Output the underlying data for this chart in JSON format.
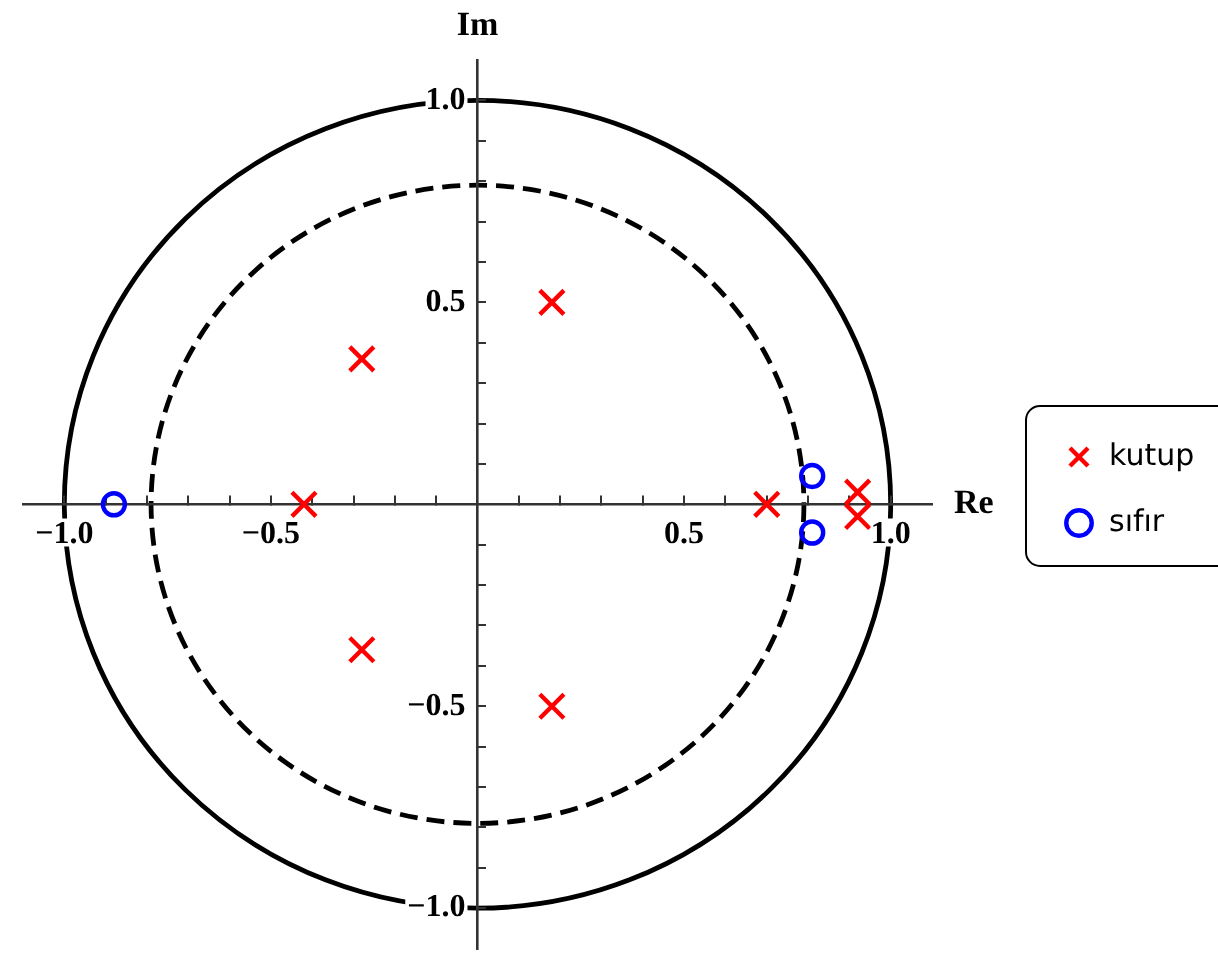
{
  "chart_data": {
    "type": "scatter",
    "xlabel": "Re",
    "ylabel": "Im",
    "xlim": [
      -1.1,
      1.1
    ],
    "ylim": [
      -1.1,
      1.1
    ],
    "xticks": [
      {
        "value": -1,
        "label": "−1.0"
      },
      {
        "value": -0.9,
        "label": null
      },
      {
        "value": -0.8,
        "label": null
      },
      {
        "value": -0.7,
        "label": null
      },
      {
        "value": -0.6,
        "label": null
      },
      {
        "value": -0.5,
        "label": "−0.5"
      },
      {
        "value": -0.4,
        "label": null
      },
      {
        "value": -0.3,
        "label": null
      },
      {
        "value": -0.2,
        "label": null
      },
      {
        "value": -0.1,
        "label": null
      },
      {
        "value": 0.1,
        "label": null
      },
      {
        "value": 0.2,
        "label": null
      },
      {
        "value": 0.3,
        "label": null
      },
      {
        "value": 0.4,
        "label": null
      },
      0.5,
      {
        "value": 0.6,
        "label": null
      },
      {
        "value": 0.7,
        "label": null
      },
      {
        "value": 0.8,
        "label": null
      },
      {
        "value": 0.9,
        "label": null
      },
      {
        "value": 1,
        "label": "1.0"
      }
    ],
    "yticks": [
      {
        "value": -1,
        "label": "−1.0"
      },
      {
        "value": -0.9,
        "label": null
      },
      {
        "value": -0.8,
        "label": null
      },
      {
        "value": -0.7,
        "label": null
      },
      {
        "value": -0.6,
        "label": null
      },
      {
        "value": -0.5,
        "label": "−0.5"
      },
      {
        "value": -0.4,
        "label": null
      },
      {
        "value": -0.3,
        "label": null
      },
      {
        "value": -0.2,
        "label": null
      },
      {
        "value": -0.1,
        "label": null
      },
      {
        "value": 0.1,
        "label": null
      },
      {
        "value": 0.2,
        "label": null
      },
      {
        "value": 0.3,
        "label": null
      },
      {
        "value": 0.4,
        "label": null
      },
      0.5,
      {
        "value": 0.6,
        "label": null
      },
      {
        "value": 0.7,
        "label": null
      },
      {
        "value": 0.8,
        "label": null
      },
      {
        "value": 0.9,
        "label": null
      },
      {
        "value": 1,
        "label": "1.0"
      }
    ],
    "grid": false,
    "legend": "right",
    "series": [
      {
        "name": "kutup",
        "color": "#ff0000",
        "marker": "cross",
        "x": [
          0.18,
          0.18,
          -0.28,
          -0.28,
          -0.42,
          0.7,
          0.92,
          0.92
        ],
        "values": [
          0.5,
          -0.5,
          0.36,
          -0.36,
          0,
          0,
          0.03,
          -0.03
        ]
      },
      {
        "name": "sıfır",
        "color": "#0000ff",
        "marker": "circle",
        "x": [
          -0.88,
          0.81,
          0.81
        ],
        "values": [
          0,
          0.07,
          -0.07
        ]
      }
    ]
  }
}
